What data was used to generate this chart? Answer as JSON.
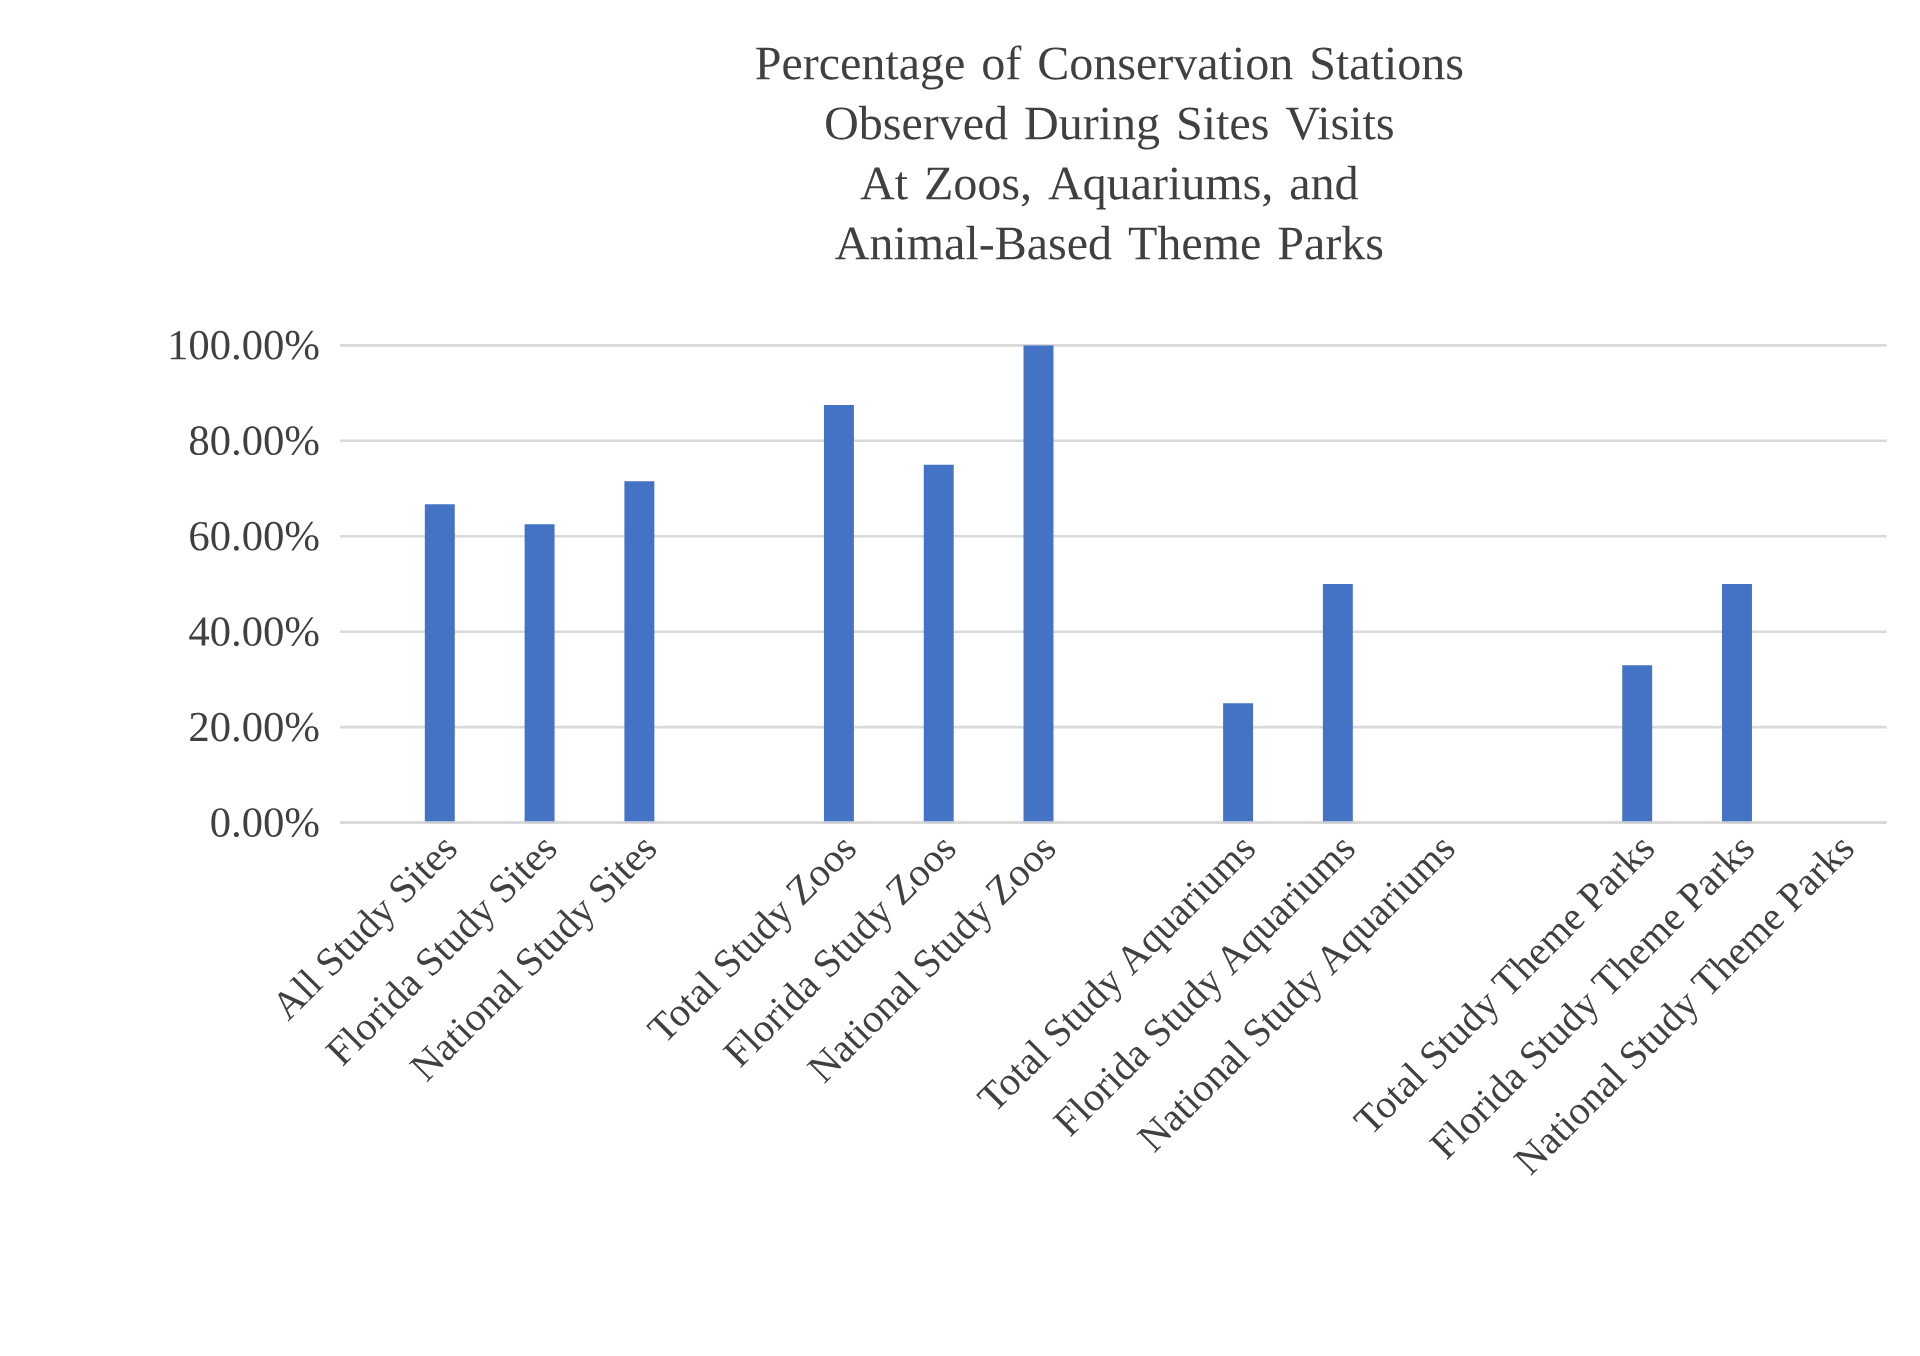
{
  "chart_data": {
    "type": "bar",
    "title": "Percentage of Conservation Stations Observed During Sites Visits",
    "subtitle": "At Zoos, Aquariums, and Animal-Based Theme Parks",
    "categories": [
      "All Study Sites",
      "Florida Study Sites",
      "National Study Sites",
      null,
      "Total Study Zoos",
      "Florida Study Zoos",
      "National Study Zoos",
      null,
      "Total Study Aquariums",
      "Florida Study Aquariums",
      "National Study Aquariums",
      null,
      "Total Study Theme Parks",
      "Florida Study Theme Parks",
      "National Study Theme Parks"
    ],
    "values": [
      66.7,
      62.5,
      71.5,
      null,
      87.5,
      75,
      100,
      null,
      25,
      50,
      0,
      null,
      33,
      50,
      0
    ],
    "color": "#4472c4",
    "ylim": [
      0,
      100
    ],
    "yticks": [
      {
        "value": 0,
        "label": "0.00%"
      },
      {
        "value": 20,
        "label": "20.00%"
      },
      {
        "value": 40,
        "label": "40.00%"
      },
      {
        "value": 60,
        "label": "60.00%"
      },
      {
        "value": 80,
        "label": "80.00%"
      },
      {
        "value": 100,
        "label": "100.00%"
      }
    ],
    "grid": "y"
  }
}
